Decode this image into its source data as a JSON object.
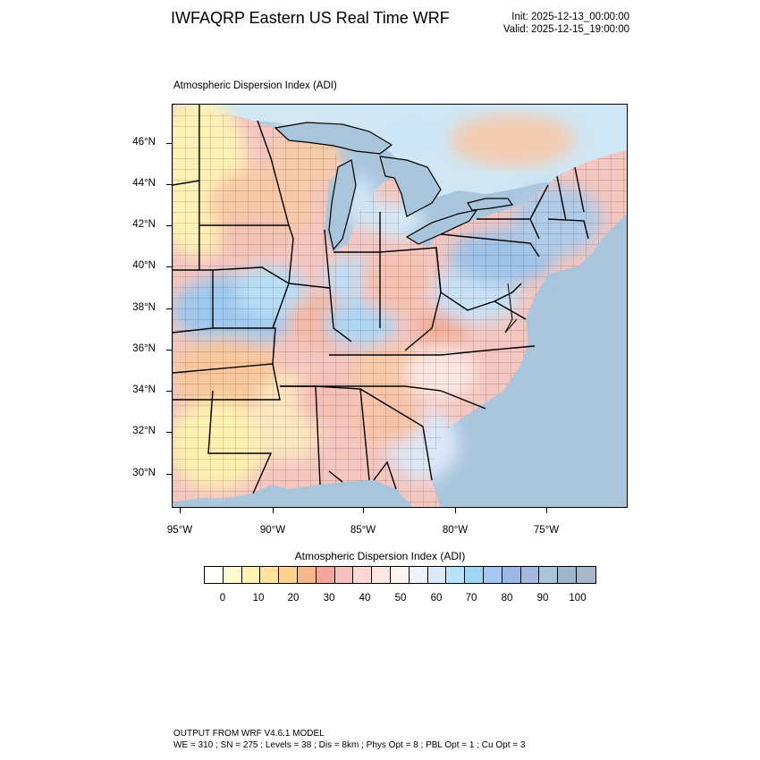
{
  "header": {
    "title": "IWFAQRP Eastern US Real Time WRF",
    "init": "Init: 2025-12-13_00:00:00",
    "valid": "Valid: 2025-12-15_19:00:00"
  },
  "plot": {
    "subtitle": "Atmospheric Dispersion Index   (ADI)",
    "lat_ticks": [
      "46°N",
      "44°N",
      "42°N",
      "40°N",
      "38°N",
      "36°N",
      "34°N",
      "32°N",
      "30°N"
    ],
    "lon_ticks": [
      "95°W",
      "90°W",
      "85°W",
      "80°W",
      "75°W"
    ]
  },
  "colorbar": {
    "title": "Atmospheric Dispersion Index  (ADI)",
    "labels": [
      "0",
      "10",
      "20",
      "30",
      "40",
      "50",
      "60",
      "70",
      "80",
      "90",
      "100"
    ],
    "colors": [
      "#ffffff",
      "#fffbd0",
      "#fff2b0",
      "#ffe39a",
      "#fdd28c",
      "#f7b78d",
      "#f4a59c",
      "#f6c1bd",
      "#fad8d3",
      "#fbe6e4",
      "#fdf3f3",
      "#eef2fb",
      "#dbe9f9",
      "#b8e3f7",
      "#9fd6f4",
      "#a3c8f1",
      "#9cb7ea",
      "#a4b9e0",
      "#a9c5dc",
      "#9fb5ce",
      "#a5b7c9"
    ]
  },
  "footer": {
    "line1": "OUTPUT FROM WRF V4.6.1 MODEL",
    "line2": "WE = 310 ; SN = 275 ; Levels = 38 ; Dis = 8km ; Phys Opt = 8 ; PBL Opt = 1 ; Cu Opt = 3"
  }
}
